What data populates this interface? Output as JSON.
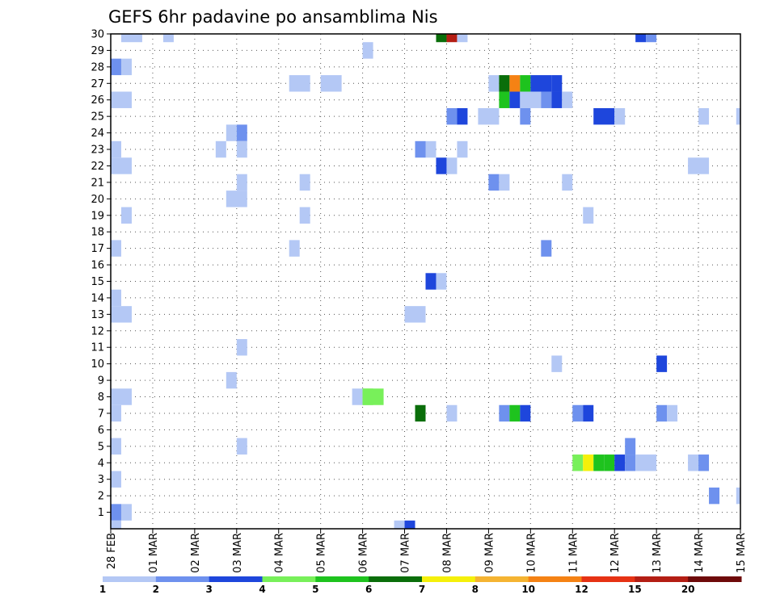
{
  "chart_data": {
    "type": "heatmap",
    "title": "GEFS 6hr padavine po ansamblima Nis",
    "xlabel": "",
    "ylabel": "",
    "x_ticks": [
      "28 FEB",
      "01 MAR",
      "02 MAR",
      "03 MAR",
      "04 MAR",
      "05 MAR",
      "06 MAR",
      "07 MAR",
      "08 MAR",
      "09 MAR",
      "10 MAR",
      "11 MAR",
      "12 MAR",
      "13 MAR",
      "14 MAR",
      "15 MAR"
    ],
    "xlim": [
      0,
      15
    ],
    "y_ticks": [
      "1",
      "2",
      "3",
      "4",
      "5",
      "6",
      "7",
      "8",
      "9",
      "10",
      "11",
      "12",
      "13",
      "14",
      "15",
      "16",
      "17",
      "18",
      "19",
      "20",
      "21",
      "22",
      "23",
      "24",
      "25",
      "26",
      "27",
      "28",
      "29",
      "30"
    ],
    "ylim": [
      0,
      30
    ],
    "grid": true,
    "legend": "bottom colorbar",
    "colorbar": {
      "labels": [
        "1",
        "2",
        "3",
        "4",
        "5",
        "6",
        "7",
        "8",
        "10",
        "12",
        "15",
        "20"
      ],
      "colors": [
        "#b4c8f5",
        "#6e91ee",
        "#1e46dc",
        "#78f05a",
        "#1ec31e",
        "#0a6e0a",
        "#f5f00a",
        "#f5b432",
        "#f58214",
        "#e63214",
        "#b41e14",
        "#6e0a0a"
      ]
    },
    "cells": [
      [
        30,
        0.25,
        0.75,
        1
      ],
      [
        30,
        1.25,
        1.5,
        1
      ],
      [
        30,
        7.75,
        8.0,
        6
      ],
      [
        30,
        8.0,
        8.25,
        11
      ],
      [
        30,
        8.25,
        8.5,
        1
      ],
      [
        30,
        12.5,
        12.75,
        3
      ],
      [
        30,
        12.75,
        13.0,
        2
      ],
      [
        29,
        6.0,
        6.25,
        1
      ],
      [
        28,
        0.0,
        0.25,
        2
      ],
      [
        28,
        0.25,
        0.5,
        1
      ],
      [
        27,
        4.25,
        4.75,
        1
      ],
      [
        27,
        5.0,
        5.5,
        1
      ],
      [
        27,
        9.0,
        9.25,
        1
      ],
      [
        27,
        9.25,
        9.5,
        6
      ],
      [
        27,
        9.5,
        9.75,
        9
      ],
      [
        27,
        9.75,
        10.0,
        5
      ],
      [
        27,
        10.0,
        10.5,
        3
      ],
      [
        27,
        10.5,
        10.75,
        3
      ],
      [
        26,
        0.0,
        0.5,
        1
      ],
      [
        26,
        9.25,
        9.5,
        5
      ],
      [
        26,
        9.5,
        9.75,
        3
      ],
      [
        26,
        9.75,
        10.25,
        1
      ],
      [
        26,
        10.25,
        10.5,
        2
      ],
      [
        26,
        10.5,
        10.75,
        3
      ],
      [
        26,
        10.75,
        11.0,
        1
      ],
      [
        25,
        8.0,
        8.25,
        2
      ],
      [
        25,
        8.25,
        8.5,
        3
      ],
      [
        25,
        8.75,
        9.25,
        1
      ],
      [
        25,
        9.75,
        10.0,
        2
      ],
      [
        25,
        11.5,
        12.0,
        3
      ],
      [
        25,
        12.0,
        12.25,
        1
      ],
      [
        25,
        14.0,
        14.25,
        1
      ],
      [
        25,
        14.9,
        15.0,
        1
      ],
      [
        24,
        2.75,
        3.0,
        1
      ],
      [
        24,
        3.0,
        3.25,
        2
      ],
      [
        23,
        0.0,
        0.25,
        1
      ],
      [
        23,
        2.5,
        2.75,
        1
      ],
      [
        23,
        3.0,
        3.25,
        1
      ],
      [
        23,
        7.25,
        7.5,
        2
      ],
      [
        23,
        7.5,
        7.75,
        1
      ],
      [
        23,
        8.25,
        8.5,
        1
      ],
      [
        22,
        0.0,
        0.5,
        1
      ],
      [
        22,
        7.75,
        8.0,
        3
      ],
      [
        22,
        8.0,
        8.25,
        1
      ],
      [
        22,
        13.75,
        14.25,
        1
      ],
      [
        21,
        3.0,
        3.25,
        1
      ],
      [
        21,
        4.5,
        4.75,
        1
      ],
      [
        21,
        9.0,
        9.25,
        2
      ],
      [
        21,
        9.25,
        9.5,
        1
      ],
      [
        21,
        10.75,
        11.0,
        1
      ],
      [
        20,
        2.75,
        3.25,
        1
      ],
      [
        19,
        0.25,
        0.5,
        1
      ],
      [
        19,
        4.5,
        4.75,
        1
      ],
      [
        19,
        11.25,
        11.5,
        1
      ],
      [
        17,
        0.0,
        0.25,
        1
      ],
      [
        17,
        4.25,
        4.5,
        1
      ],
      [
        17,
        10.25,
        10.5,
        2
      ],
      [
        15,
        7.5,
        7.75,
        3
      ],
      [
        15,
        7.75,
        8.0,
        1
      ],
      [
        14,
        0.0,
        0.25,
        1
      ],
      [
        13,
        0.0,
        0.5,
        1
      ],
      [
        13,
        7.0,
        7.5,
        1
      ],
      [
        11,
        3.0,
        3.25,
        1
      ],
      [
        10,
        10.5,
        10.75,
        1
      ],
      [
        10,
        13.0,
        13.25,
        3
      ],
      [
        9,
        2.75,
        3.0,
        1
      ],
      [
        8,
        0.0,
        0.5,
        1
      ],
      [
        8,
        5.75,
        6.0,
        1
      ],
      [
        8,
        6.0,
        6.25,
        4
      ],
      [
        8,
        6.0,
        6.5,
        4
      ],
      [
        7,
        0.0,
        0.25,
        1
      ],
      [
        7,
        7.25,
        7.5,
        6
      ],
      [
        7,
        8.0,
        8.25,
        1
      ],
      [
        7,
        9.25,
        9.5,
        2
      ],
      [
        7,
        9.5,
        9.75,
        5
      ],
      [
        7,
        9.75,
        10.0,
        3
      ],
      [
        7,
        11.0,
        11.25,
        2
      ],
      [
        7,
        11.25,
        11.5,
        3
      ],
      [
        7,
        13.0,
        13.25,
        2
      ],
      [
        7,
        13.25,
        13.5,
        1
      ],
      [
        5,
        0.0,
        0.25,
        1
      ],
      [
        5,
        3.0,
        3.25,
        1
      ],
      [
        5,
        12.25,
        12.5,
        2
      ],
      [
        4,
        11.0,
        11.25,
        4
      ],
      [
        4,
        11.25,
        11.5,
        7
      ],
      [
        4,
        11.5,
        11.75,
        5
      ],
      [
        4,
        11.75,
        12.0,
        5
      ],
      [
        4,
        12.0,
        12.25,
        3
      ],
      [
        4,
        12.25,
        12.5,
        2
      ],
      [
        4,
        12.5,
        13.0,
        1
      ],
      [
        4,
        13.75,
        14.0,
        1
      ],
      [
        4,
        14.0,
        14.25,
        2
      ],
      [
        3,
        0.0,
        0.25,
        1
      ],
      [
        2,
        14.25,
        14.5,
        2
      ],
      [
        2,
        14.9,
        15.0,
        1
      ],
      [
        1,
        0.0,
        0.25,
        2
      ],
      [
        1,
        0.25,
        0.5,
        1
      ],
      [
        0,
        0.0,
        0.25,
        1
      ],
      [
        0,
        6.75,
        7.0,
        1
      ],
      [
        0,
        7.0,
        7.25,
        3
      ]
    ]
  }
}
